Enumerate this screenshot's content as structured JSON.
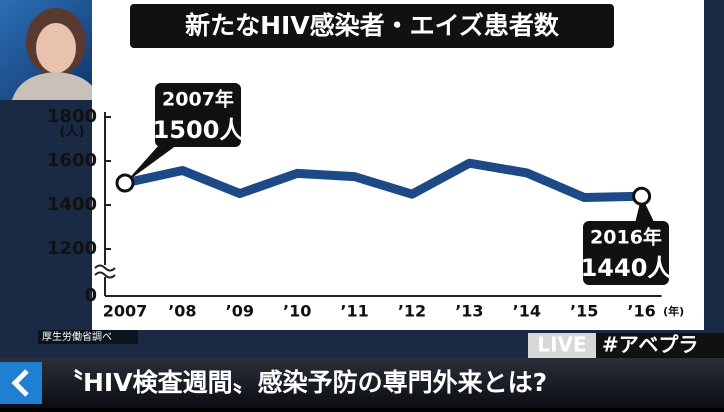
{
  "title": "新たなHIV感染者・エイズ患者数",
  "chart_data": {
    "type": "line",
    "categories": [
      "2007",
      "’08",
      "’09",
      "’10",
      "’11",
      "’12",
      "’13",
      "’14",
      "’15",
      "’16"
    ],
    "x_unit": "(年)",
    "y_unit": "(人)",
    "series": [
      {
        "color": "#1d4a86",
        "values": [
          1500,
          1557,
          1452,
          1544,
          1529,
          1449,
          1590,
          1546,
          1434,
          1440
        ]
      }
    ],
    "ylim": [
      1000,
      1800
    ],
    "yticks": [
      0,
      1200,
      1400,
      1600,
      1800
    ],
    "axis_break": true,
    "annotations": [
      {
        "lines": [
          "2007年",
          "1500人"
        ]
      },
      {
        "lines": [
          "2016年",
          "1440人"
        ]
      }
    ]
  },
  "source": "厚生労働省調べ",
  "live_badge": "LIVE",
  "hashtag": "#アベプラ",
  "headline": "〝HIV検査週間〟感染予防の専門外来とは?"
}
